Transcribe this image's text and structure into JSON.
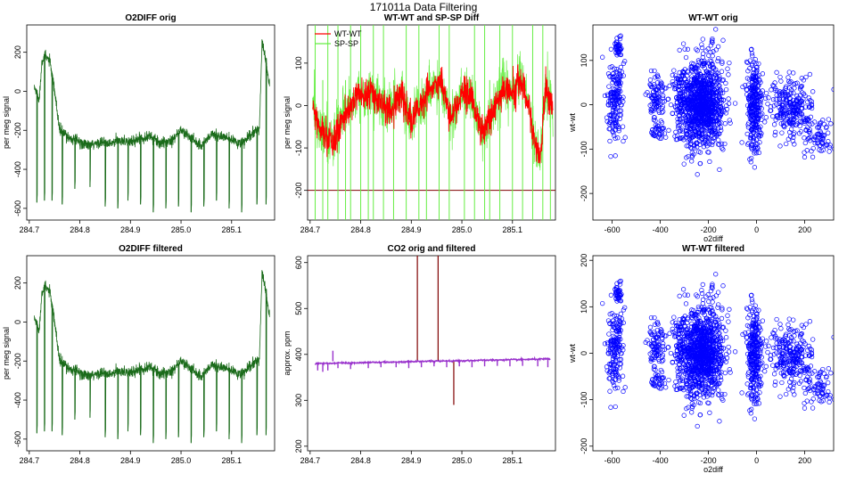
{
  "figure": {
    "title": "171011a   Data Filtering"
  },
  "colors": {
    "green": "#1a6b1a",
    "red": "#ff0000",
    "lightgreen": "#66ee44",
    "darkred": "#8b1a1a",
    "purple": "#9932cc",
    "blue": "#0000ff",
    "brown": "#800000"
  },
  "chart_data": [
    {
      "id": "p1",
      "type": "line",
      "title": "O2DIFF orig",
      "xlabel": "",
      "ylabel": "per meg signal",
      "xlim": [
        284.695,
        285.185
      ],
      "ylim": [
        -660,
        340
      ],
      "xticks": [
        284.7,
        284.8,
        284.9,
        285.0,
        285.1
      ],
      "xtick_labels": [
        "284.7",
        "284.8",
        "284.9",
        "285.0",
        "285.1"
      ],
      "yticks": [
        -600,
        -400,
        -200,
        0,
        200
      ],
      "ytick_labels": [
        "-600",
        "-400",
        "-200",
        "0",
        "200"
      ],
      "series": [
        {
          "name": "O2DIFF",
          "color": "green",
          "baseline_x": [
            284.71,
            284.72,
            284.725,
            284.73,
            284.74,
            284.75,
            284.76,
            284.78,
            284.8,
            284.82,
            284.84,
            284.86,
            284.88,
            284.9,
            284.92,
            284.94,
            284.96,
            284.98,
            285.0,
            285.02,
            285.04,
            285.06,
            285.08,
            285.1,
            285.12,
            285.14,
            285.155,
            285.16,
            285.165,
            285.175
          ],
          "baseline_y": [
            20,
            -40,
            160,
            180,
            160,
            0,
            -200,
            -240,
            -260,
            -280,
            -260,
            -270,
            -250,
            -260,
            -240,
            -230,
            -270,
            -250,
            -200,
            -240,
            -280,
            -220,
            -230,
            -250,
            -270,
            -220,
            -190,
            250,
            200,
            20
          ],
          "dips_x": [
            284.715,
            284.73,
            284.745,
            284.765,
            284.79,
            284.82,
            284.85,
            284.875,
            284.895,
            284.92,
            284.945,
            284.97,
            284.995,
            285.02,
            285.045,
            285.07,
            285.095,
            285.12,
            285.15,
            285.168
          ],
          "dips_y": [
            -570,
            -560,
            -560,
            -580,
            -500,
            -490,
            -590,
            -600,
            -560,
            -580,
            -620,
            -600,
            -590,
            -620,
            -590,
            -560,
            -600,
            -620,
            -580,
            -580
          ]
        }
      ]
    },
    {
      "id": "p2",
      "type": "line",
      "title": "WT-WT and SP-SP Diff",
      "xlabel": "",
      "ylabel": "per meg signal",
      "xlim": [
        284.695,
        285.185
      ],
      "ylim": [
        -270,
        190
      ],
      "xticks": [
        284.7,
        284.8,
        284.9,
        285.0,
        285.1
      ],
      "xtick_labels": [
        "284.7",
        "284.8",
        "284.9",
        "285.0",
        "285.1"
      ],
      "yticks": [
        -200,
        -100,
        0,
        100
      ],
      "ytick_labels": [
        "-200",
        "-100",
        "0",
        "100"
      ],
      "hline": -200,
      "legend": {
        "position": "top-left",
        "entries": [
          "WT-WT",
          "SP-SP"
        ]
      },
      "series": [
        {
          "name": "WT-WT",
          "color": "red",
          "x": [
            284.705,
            284.72,
            284.735,
            284.745,
            284.755,
            284.765,
            284.78,
            284.795,
            284.805,
            284.82,
            284.84,
            284.86,
            284.88,
            284.9,
            284.92,
            284.94,
            284.96,
            284.98,
            285.0,
            285.02,
            285.04,
            285.06,
            285.08,
            285.1,
            285.115,
            285.13,
            285.145,
            285.155,
            285.165,
            285.18
          ],
          "y": [
            0,
            -60,
            -80,
            -90,
            -60,
            -20,
            -10,
            40,
            20,
            35,
            0,
            -10,
            30,
            -40,
            10,
            40,
            50,
            -30,
            30,
            20,
            -70,
            -20,
            40,
            30,
            60,
            20,
            -100,
            -120,
            40,
            0
          ]
        },
        {
          "name": "SP-SP",
          "color": "lightgreen",
          "spikes_x": [
            284.71,
            284.725,
            284.735,
            284.755,
            284.77,
            284.78,
            284.8,
            284.815,
            284.825,
            284.845,
            284.865,
            284.89,
            284.915,
            284.93,
            284.955,
            284.975,
            285.005,
            285.025,
            285.045,
            285.055,
            285.075,
            285.1,
            285.12,
            285.14,
            285.16,
            285.175
          ]
        }
      ]
    },
    {
      "id": "p3",
      "type": "scatter",
      "title": "WT-WT orig",
      "xlabel": "o2diff",
      "ylabel": "wt-wt",
      "xlim": [
        -680,
        320
      ],
      "ylim": [
        -260,
        180
      ],
      "xticks": [
        -600,
        -400,
        -200,
        0,
        200
      ],
      "xtick_labels": [
        "-600",
        "-400",
        "-200",
        "0",
        "200"
      ],
      "yticks": [
        -200,
        -100,
        0,
        100
      ],
      "ytick_labels": [
        "-200",
        "-100",
        "0",
        "100"
      ],
      "clusters": [
        {
          "cx": -590,
          "cy": 10,
          "sx": 18,
          "sy": 45,
          "n": 170
        },
        {
          "cx": -575,
          "cy": 130,
          "sx": 8,
          "sy": 12,
          "n": 40
        },
        {
          "cx": -410,
          "cy": 20,
          "sx": 20,
          "sy": 25,
          "n": 90
        },
        {
          "cx": -410,
          "cy": -60,
          "sx": 15,
          "sy": 12,
          "n": 35
        },
        {
          "cx": -320,
          "cy": 10,
          "sx": 12,
          "sy": 30,
          "n": 60
        },
        {
          "cx": -230,
          "cy": 0,
          "sx": 45,
          "sy": 50,
          "n": 1100
        },
        {
          "cx": -10,
          "cy": 0,
          "sx": 15,
          "sy": 50,
          "n": 300
        },
        {
          "cx": 150,
          "cy": -10,
          "sx": 45,
          "sy": 35,
          "n": 260
        },
        {
          "cx": 260,
          "cy": -70,
          "sx": 35,
          "sy": 22,
          "n": 70
        }
      ]
    },
    {
      "id": "p4",
      "type": "line",
      "title": "O2DIFF filtered",
      "xlabel": "",
      "ylabel": "per meg signal",
      "xlim": [
        284.695,
        285.185
      ],
      "ylim": [
        -660,
        340
      ],
      "xticks": [
        284.7,
        284.8,
        284.9,
        285.0,
        285.1
      ],
      "xtick_labels": [
        "284.7",
        "284.8",
        "284.9",
        "285.0",
        "285.1"
      ],
      "yticks": [
        -600,
        -400,
        -200,
        0,
        200
      ],
      "ytick_labels": [
        "-600",
        "-400",
        "-200",
        "0",
        "200"
      ],
      "series": [
        {
          "name": "O2DIFF filtered",
          "color": "green",
          "baseline_x": [
            284.71,
            284.72,
            284.725,
            284.73,
            284.74,
            284.75,
            284.76,
            284.78,
            284.8,
            284.82,
            284.84,
            284.86,
            284.88,
            284.9,
            284.92,
            284.94,
            284.96,
            284.98,
            285.0,
            285.02,
            285.04,
            285.06,
            285.08,
            285.1,
            285.12,
            285.14,
            285.155,
            285.16,
            285.165,
            285.175
          ],
          "baseline_y": [
            20,
            -40,
            160,
            180,
            160,
            0,
            -200,
            -240,
            -260,
            -280,
            -260,
            -270,
            -250,
            -260,
            -240,
            -230,
            -270,
            -250,
            -200,
            -240,
            -280,
            -220,
            -230,
            -250,
            -270,
            -220,
            -190,
            250,
            200,
            20
          ],
          "dips_x": [
            284.715,
            284.73,
            284.745,
            284.765,
            284.79,
            284.82,
            284.85,
            284.875,
            284.895,
            284.92,
            284.945,
            284.97,
            284.995,
            285.02,
            285.045,
            285.07,
            285.095,
            285.12,
            285.15,
            285.168
          ],
          "dips_y": [
            -570,
            -560,
            -560,
            -580,
            -500,
            -490,
            -590,
            -600,
            -560,
            -580,
            -620,
            -600,
            -590,
            -620,
            -590,
            -560,
            -600,
            -620,
            -580,
            -580
          ]
        }
      ]
    },
    {
      "id": "p5",
      "type": "line",
      "title": "CO2 orig and filtered",
      "xlabel": "",
      "ylabel": "approx. ppm",
      "xlim": [
        284.695,
        285.185
      ],
      "ylim": [
        190,
        615
      ],
      "xticks": [
        284.7,
        284.8,
        284.9,
        285.0,
        285.1
      ],
      "xtick_labels": [
        "284.7",
        "284.8",
        "284.9",
        "285.0",
        "285.1"
      ],
      "yticks": [
        200,
        300,
        400,
        500,
        600
      ],
      "ytick_labels": [
        "200",
        "300",
        "400",
        "500",
        "600"
      ],
      "series": [
        {
          "name": "CO2 orig",
          "color": "brown",
          "spikes_x": [
            284.912,
            284.953,
            284.984
          ],
          "spikes_y": [
            615,
            615,
            290
          ]
        },
        {
          "name": "CO2 filtered",
          "color": "purple",
          "start_x": 284.71,
          "end_x": 285.175,
          "level_start": 380,
          "level_end": 390,
          "bump_x": 284.745,
          "bump_y": 408,
          "dips_x": [
            284.715,
            284.725,
            284.735,
            284.755,
            284.78,
            284.815,
            284.84,
            284.87,
            284.895,
            284.92,
            284.945,
            284.97,
            284.995,
            285.02,
            285.045,
            285.07,
            285.095,
            285.12,
            285.15,
            285.17
          ],
          "dips_y": [
            365,
            362,
            365,
            370,
            368,
            370,
            372,
            372,
            370,
            372,
            374,
            372,
            374,
            372,
            374,
            375,
            374,
            375,
            374,
            372
          ]
        }
      ]
    },
    {
      "id": "p6",
      "type": "scatter",
      "title": "WT-WT filtered",
      "xlabel": "o2diff",
      "ylabel": "wt-wt",
      "xlim": [
        -680,
        320
      ],
      "ylim": [
        -210,
        210
      ],
      "xticks": [
        -600,
        -400,
        -200,
        0,
        200
      ],
      "xtick_labels": [
        "-600",
        "-400",
        "-200",
        "0",
        "200"
      ],
      "yticks": [
        -200,
        -100,
        0,
        100,
        200
      ],
      "ytick_labels": [
        "-200",
        "-100",
        "0",
        "100",
        "200"
      ],
      "clusters": [
        {
          "cx": -590,
          "cy": 10,
          "sx": 18,
          "sy": 45,
          "n": 170
        },
        {
          "cx": -575,
          "cy": 130,
          "sx": 8,
          "sy": 12,
          "n": 40
        },
        {
          "cx": -410,
          "cy": 20,
          "sx": 20,
          "sy": 25,
          "n": 90
        },
        {
          "cx": -410,
          "cy": -60,
          "sx": 15,
          "sy": 12,
          "n": 35
        },
        {
          "cx": -320,
          "cy": 10,
          "sx": 12,
          "sy": 30,
          "n": 60
        },
        {
          "cx": -230,
          "cy": 0,
          "sx": 45,
          "sy": 50,
          "n": 1100
        },
        {
          "cx": -10,
          "cy": 0,
          "sx": 15,
          "sy": 50,
          "n": 300
        },
        {
          "cx": 150,
          "cy": -10,
          "sx": 45,
          "sy": 35,
          "n": 260
        },
        {
          "cx": 260,
          "cy": -70,
          "sx": 35,
          "sy": 22,
          "n": 70
        }
      ]
    }
  ]
}
